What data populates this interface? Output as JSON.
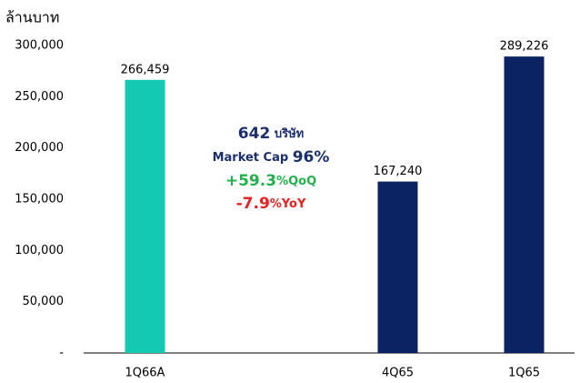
{
  "chart_data": {
    "type": "bar",
    "y_label": "ล้านบาท",
    "categories": [
      "1Q66A",
      null,
      "4Q65",
      "1Q65"
    ],
    "values": [
      266459,
      null,
      167240,
      289226
    ],
    "value_labels": [
      "266,459",
      null,
      "167,240",
      "289,226"
    ],
    "colors": [
      "#14c9b2",
      null,
      "#0b2263",
      "#0b2263"
    ],
    "ylim": [
      0,
      300000
    ],
    "yticks": [
      {
        "value": 0,
        "label": "-"
      },
      {
        "value": 50000,
        "label": "50,000"
      },
      {
        "value": 100000,
        "label": "100,000"
      },
      {
        "value": 150000,
        "label": "150,000"
      },
      {
        "value": 200000,
        "label": "200,000"
      },
      {
        "value": 250000,
        "label": "250,000"
      },
      {
        "value": 300000,
        "label": "300,000"
      }
    ],
    "annotations": [
      [
        "642",
        "บริษัท"
      ],
      [
        "Market Cap",
        "96%"
      ],
      [
        "+59.3",
        "%QoQ"
      ],
      [
        "-7.9",
        "%YoY"
      ]
    ]
  }
}
